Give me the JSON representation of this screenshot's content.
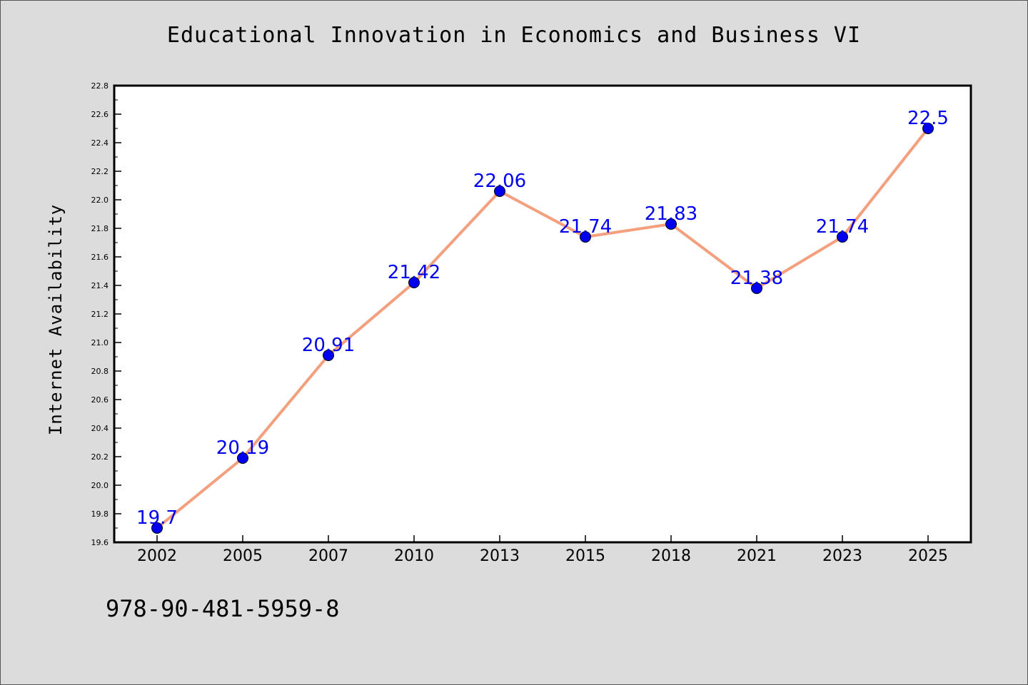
{
  "chart_data": {
    "type": "line",
    "title": "Educational Innovation in Economics and Business VI",
    "xlabel": "",
    "ylabel": "Internet Availability",
    "categories": [
      "2002",
      "2005",
      "2007",
      "2010",
      "2013",
      "2015",
      "2018",
      "2021",
      "2023",
      "2025"
    ],
    "values": [
      19.7,
      20.19,
      20.91,
      21.42,
      22.06,
      21.74,
      21.83,
      21.38,
      21.74,
      22.5
    ],
    "data_labels": [
      "19.7",
      "20.19",
      "20.91",
      "21.42",
      "22.06",
      "21.74",
      "21.83",
      "21.38",
      "21.74",
      "22.5"
    ],
    "ylim": [
      19.6,
      22.8
    ],
    "yticks": [
      "19.6",
      "19.8",
      "20.0",
      "20.2",
      "20.4",
      "20.6",
      "20.8",
      "21.0",
      "21.2",
      "21.4",
      "21.6",
      "21.8",
      "22.0",
      "22.2",
      "22.4",
      "22.6",
      "22.8"
    ],
    "grid": false,
    "line_color": "#f4a07e",
    "marker_color": "#0000ee",
    "label_color": "#0000ee"
  },
  "footer": {
    "isbn": "978-90-481-5959-8"
  }
}
